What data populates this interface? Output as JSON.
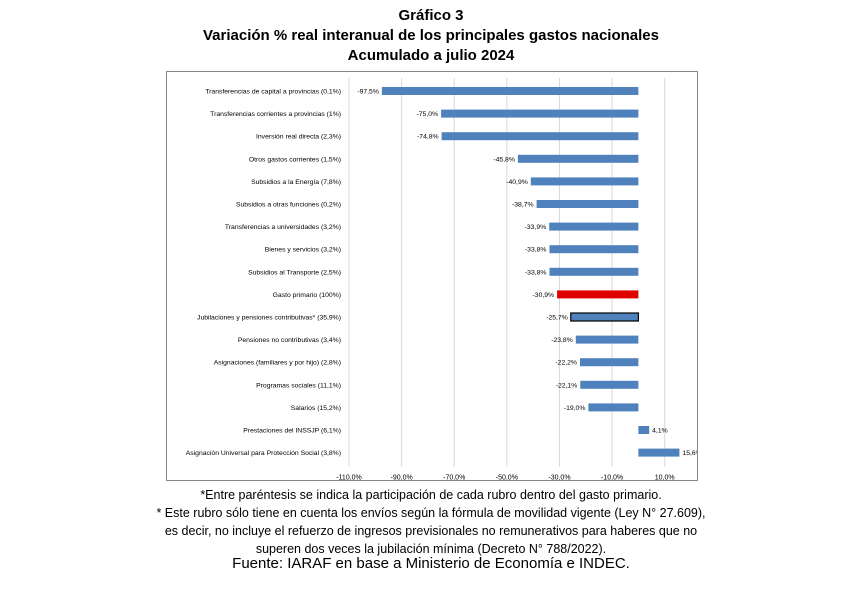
{
  "header": {
    "label": "Gráfico 3",
    "title": "Variación % real interanual de los principales gastos nacionales",
    "subtitle": "Acumulado a julio 2024"
  },
  "colors": {
    "bar": "#4f81bd",
    "highlight": "#e00000",
    "outline": "#000000"
  },
  "chart_data": {
    "type": "bar",
    "orientation": "horizontal",
    "categories": [
      "Transferencias de capital a provincias (0,1%)",
      "Transferencias corrientes a provincias (1%)",
      "Inversión real directa (2,3%)",
      "Otros gastos corrientes (1,5%)",
      "Subsidios a la Energía (7,8%)",
      "Subsidios a otras funciones (0,2%)",
      "Transferencias a universidades (3,2%)",
      "Bienes y servicios (3,2%)",
      "Subsidios al Transporte (2,5%)",
      "Gasto primario (100%)",
      "Jubilaciones y pensiones contributivas* (35,9%)",
      "Pensiones no contributivas (3,4%)",
      "Asignaciones (familiares y por hijo) (2,8%)",
      "Programas sociales (11,1%)",
      "Salarios (15,2%)",
      "Prestaciones del INSSJP (6,1%)",
      "Asignación Universal para Protección Social (3,8%)"
    ],
    "values": [
      -97.5,
      -75.0,
      -74.8,
      -45.8,
      -40.9,
      -38.7,
      -33.9,
      -33.8,
      -33.8,
      -30.9,
      -25.7,
      -23.8,
      -22.2,
      -22.1,
      -19.0,
      4.1,
      15.6
    ],
    "value_labels": [
      "-97,5%",
      "-75,0%",
      "-74,8%",
      "-45,8%",
      "-40,9%",
      "-38,7%",
      "-33,9%",
      "-33,8%",
      "-33,8%",
      "-30,9%",
      "-25,7%",
      "-23,8%",
      "-22,2%",
      "-22,1%",
      "-19,0%",
      "4,1%",
      "15,6%"
    ],
    "highlight": {
      "Gasto primario (100%)": "red",
      "Jubilaciones y pensiones contributivas* (35,9%)": "outlined"
    },
    "x_ticks": [
      -110,
      -90,
      -70,
      -50,
      -30,
      -10,
      10
    ],
    "x_tick_labels": [
      "-110,0%",
      "-90,0%",
      "-70,0%",
      "-50,0%",
      "-30,0%",
      "-10,0%",
      "10,0%"
    ],
    "xlim": [
      -110,
      20
    ],
    "grid": "vertical"
  },
  "footnotes": {
    "note1": "*Entre paréntesis se indica la participación de cada rubro dentro del gasto primario.",
    "note2": "* Este rubro sólo tiene en cuenta los envíos según la fórmula de movilidad vigente (Ley N° 27.609), es decir, no incluye el refuerzo de ingresos previsionales no remunerativos para haberes que no superen dos veces la jubilación mínima (Decreto N° 788/2022)."
  },
  "source": "Fuente: IARAF en base a Ministerio de Economía e INDEC."
}
